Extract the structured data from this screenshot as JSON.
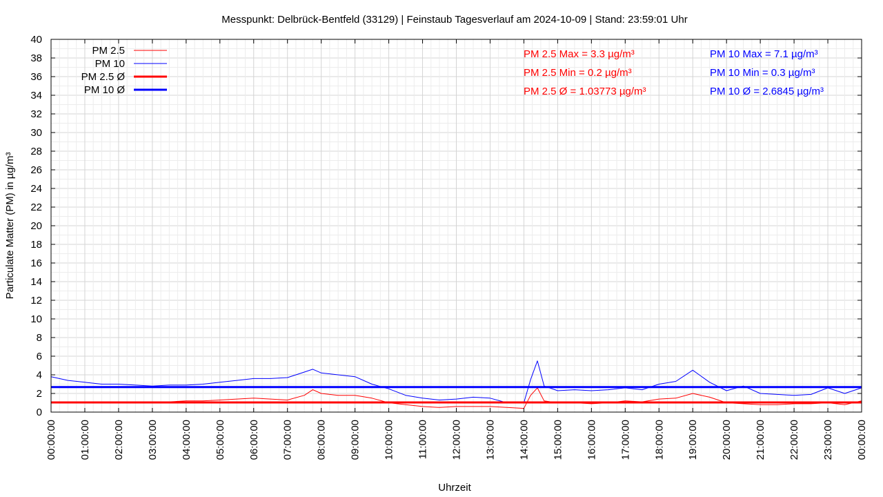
{
  "chart_data": {
    "type": "line",
    "title": "Messpunkt: Delbrück-Bentfeld (33129) | Feinstaub Tagesverlauf am 2024-10-09 | Stand: 23:59:01 Uhr",
    "xlabel": "Uhrzeit",
    "ylabel": "Particulate Matter (PM) in µg/m³",
    "ylim": [
      0,
      40
    ],
    "yticks": [
      0,
      2,
      4,
      6,
      8,
      10,
      12,
      14,
      16,
      18,
      20,
      22,
      24,
      26,
      28,
      30,
      32,
      34,
      36,
      38,
      40
    ],
    "xlim_hours": [
      0,
      24
    ],
    "xtick_labels": [
      "00:00:00",
      "01:00:00",
      "02:00:00",
      "03:00:00",
      "04:00:00",
      "05:00:00",
      "06:00:00",
      "07:00:00",
      "08:00:00",
      "09:00:00",
      "10:00:00",
      "11:00:00",
      "12:00:00",
      "13:00:00",
      "14:00:00",
      "15:00:00",
      "16:00:00",
      "17:00:00",
      "18:00:00",
      "19:00:00",
      "20:00:00",
      "21:00:00",
      "22:00:00",
      "23:00:00",
      "00:00:00"
    ],
    "grid": true,
    "legend_position": "top-left",
    "series": [
      {
        "name": "PM 2.5",
        "color": "#ff0000",
        "style": "thin",
        "x_hours": [
          0,
          0.5,
          1,
          1.5,
          2,
          2.5,
          3,
          3.5,
          4,
          4.5,
          5,
          5.5,
          6,
          6.5,
          7,
          7.5,
          7.75,
          8,
          8.5,
          9,
          9.5,
          10,
          10.5,
          11,
          11.5,
          12,
          12.5,
          13,
          13.5,
          14,
          14.2,
          14.4,
          14.6,
          15,
          15.5,
          16,
          16.5,
          17,
          17.5,
          18,
          18.5,
          19,
          19.5,
          20,
          20.5,
          21,
          21.5,
          22,
          22.5,
          23,
          23.5,
          24
        ],
        "values": [
          1.0,
          1.0,
          1.0,
          1.0,
          1.0,
          1.0,
          1.0,
          1.1,
          1.2,
          1.2,
          1.3,
          1.4,
          1.5,
          1.4,
          1.3,
          1.8,
          2.4,
          2.0,
          1.8,
          1.8,
          1.5,
          1.0,
          0.8,
          0.6,
          0.5,
          0.6,
          0.6,
          0.6,
          0.5,
          0.4,
          1.8,
          2.6,
          1.2,
          1.0,
          1.0,
          0.9,
          1.0,
          1.2,
          1.1,
          1.4,
          1.5,
          2.0,
          1.6,
          1.0,
          0.9,
          0.8,
          0.8,
          0.9,
          0.9,
          1.0,
          0.8,
          1.2
        ]
      },
      {
        "name": "PM 10",
        "color": "#0000ff",
        "style": "thin",
        "x_hours": [
          0,
          0.5,
          1,
          1.5,
          2,
          2.5,
          3,
          3.5,
          4,
          4.5,
          5,
          5.5,
          6,
          6.5,
          7,
          7.5,
          7.75,
          8,
          8.5,
          9,
          9.5,
          10,
          10.5,
          11,
          11.5,
          12,
          12.5,
          13,
          13.5,
          14,
          14.2,
          14.4,
          14.6,
          15,
          15.5,
          16,
          16.5,
          17,
          17.5,
          18,
          18.5,
          19,
          19.5,
          20,
          20.5,
          21,
          21.5,
          22,
          22.5,
          23,
          23.5,
          24
        ],
        "values": [
          3.8,
          3.4,
          3.2,
          3.0,
          3.0,
          2.9,
          2.8,
          2.9,
          2.9,
          3.0,
          3.2,
          3.4,
          3.6,
          3.6,
          3.7,
          4.3,
          4.6,
          4.2,
          4.0,
          3.8,
          3.0,
          2.5,
          1.8,
          1.5,
          1.3,
          1.4,
          1.6,
          1.5,
          1.0,
          1.0,
          3.5,
          5.5,
          2.8,
          2.3,
          2.4,
          2.3,
          2.4,
          2.6,
          2.4,
          3.0,
          3.3,
          4.5,
          3.2,
          2.3,
          2.8,
          2.0,
          1.9,
          1.8,
          1.9,
          2.6,
          2.0,
          2.6
        ]
      },
      {
        "name": "PM 2.5 Ø",
        "color": "#ff0000",
        "style": "thick",
        "value": 1.03773
      },
      {
        "name": "PM 10 Ø",
        "color": "#0000ff",
        "style": "thick",
        "value": 2.6845
      }
    ],
    "annotations": {
      "pm25": {
        "color": "#ff0000",
        "lines": [
          "PM 2.5 Max = 3.3 µg/m³",
          "PM 2.5 Min = 0.2 µg/m³",
          "PM 2.5 Ø = 1.03773 µg/m³"
        ]
      },
      "pm10": {
        "color": "#0000ff",
        "lines": [
          "PM 10 Max = 7.1 µg/m³",
          "PM 10 Min = 0.3 µg/m³",
          "PM 10 Ø = 2.6845 µg/m³"
        ]
      }
    }
  }
}
